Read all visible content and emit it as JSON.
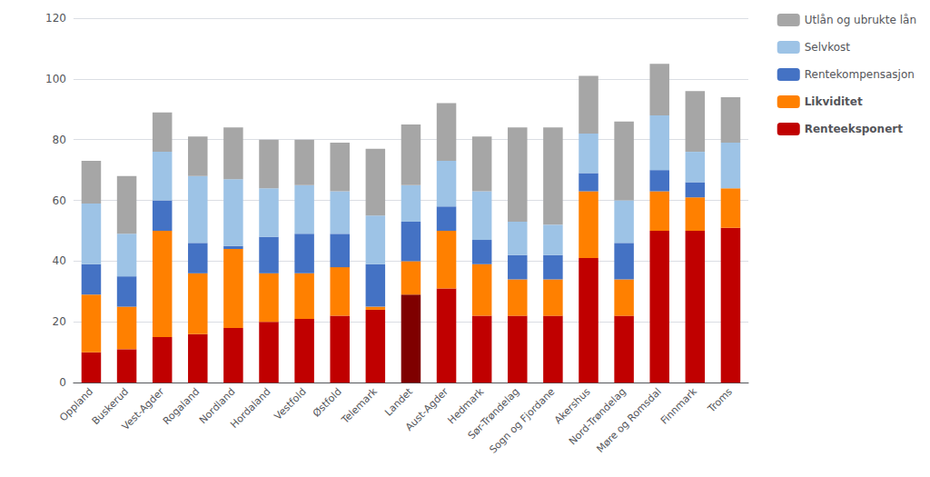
{
  "chart_data": {
    "type": "bar",
    "stacked": true,
    "grid": true,
    "legend": "right",
    "categories": [
      "Oppland",
      "Buskerud",
      "Vest-Agder",
      "Rogaland",
      "Nordland",
      "Hordaland",
      "Vestfold",
      "Østfold",
      "Telemark",
      "Landet",
      "Aust-Agder",
      "Hedmark",
      "Sør-Trøndelag",
      "Sogn og Fjordane",
      "Akershus",
      "Nord-Trøndelag",
      "Møre og Romsdal",
      "Finnmark",
      "Troms"
    ],
    "series": [
      {
        "name": "Renteeksponert",
        "color": "#C00000",
        "colors": [
          "#C00000",
          "#C00000",
          "#C00000",
          "#C00000",
          "#C00000",
          "#C00000",
          "#C00000",
          "#C00000",
          "#C00000",
          "#7F0000",
          "#C00000",
          "#C00000",
          "#C00000",
          "#C00000",
          "#C00000",
          "#C00000",
          "#C00000",
          "#C00000",
          "#C00000"
        ],
        "values": [
          10,
          11,
          15,
          16,
          18,
          20,
          21,
          22,
          24,
          29,
          31,
          22,
          22,
          22,
          41,
          22,
          50,
          50,
          51
        ]
      },
      {
        "name": "Likviditet",
        "color": "#FF8000",
        "values": [
          19,
          14,
          35,
          20,
          26,
          16,
          15,
          16,
          1,
          11,
          19,
          17,
          12,
          12,
          22,
          12,
          13,
          11,
          13
        ]
      },
      {
        "name": "Rentekompensasjon",
        "color": "#4472C4",
        "values": [
          10,
          10,
          10,
          10,
          1,
          12,
          13,
          11,
          14,
          13,
          8,
          8,
          8,
          8,
          6,
          12,
          7,
          5,
          0
        ]
      },
      {
        "name": "Selvkost",
        "color": "#9DC3E6",
        "values": [
          20,
          14,
          16,
          22,
          22,
          16,
          16,
          14,
          16,
          12,
          15,
          16,
          11,
          10,
          13,
          14,
          18,
          10,
          15
        ]
      },
      {
        "name": "Utlån og ubrukte lån",
        "color": "#A6A6A6",
        "values": [
          14,
          19,
          13,
          13,
          17,
          16,
          15,
          16,
          22,
          20,
          19,
          18,
          31,
          32,
          19,
          26,
          17,
          20,
          15
        ]
      }
    ],
    "ylim": [
      0,
      120
    ],
    "yticks": [
      0,
      20,
      40,
      60,
      80,
      100,
      120
    ]
  }
}
